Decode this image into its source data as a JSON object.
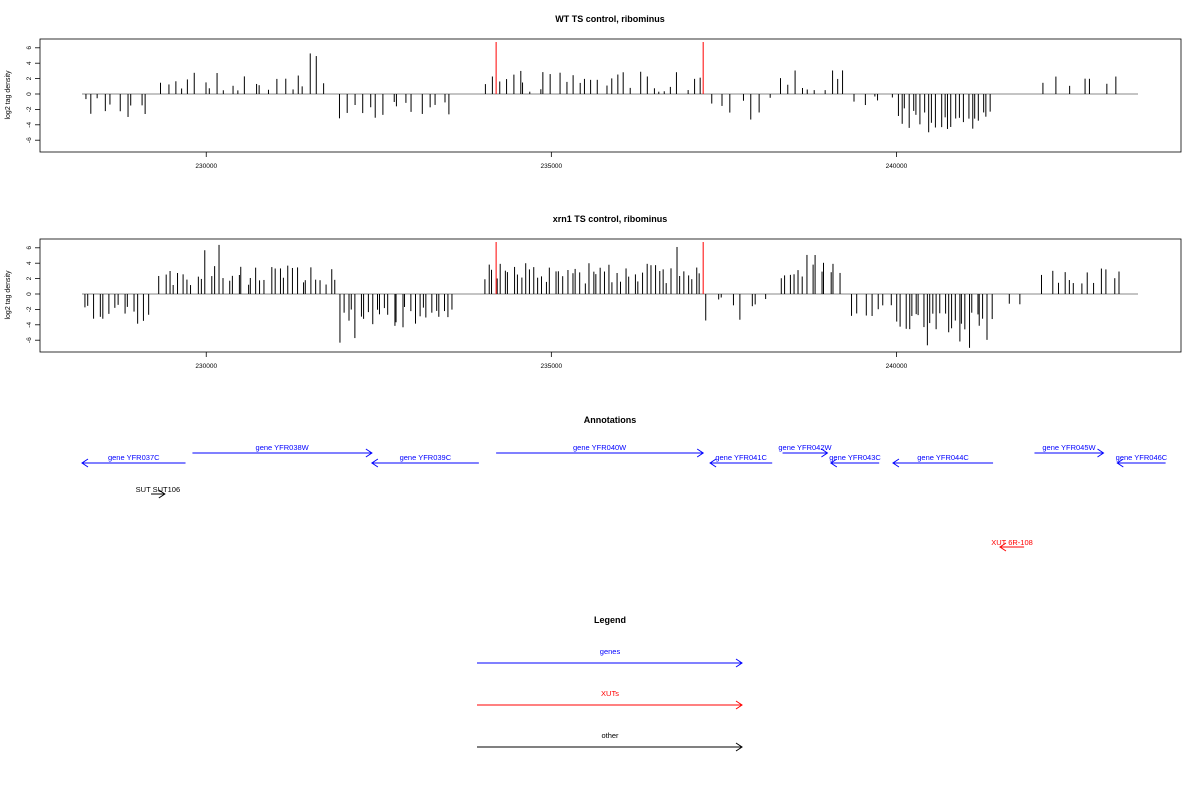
{
  "chart_data": [
    {
      "type": "bar",
      "panel": "wt",
      "title": "WT TS control, ribominus",
      "xlabel": "",
      "ylabel": "log2 tag density",
      "xlim": [
        228200,
        243500
      ],
      "ylim": [
        -7.5,
        7
      ],
      "xticks": [
        230000,
        235000,
        240000
      ],
      "yticks": [
        6,
        4,
        2,
        0,
        -2,
        -4,
        -6
      ],
      "red_markers": [
        234200,
        237200
      ],
      "segments": [
        {
          "x0": 228200,
          "x1": 229200,
          "sign": -1,
          "base": 1.6,
          "amp": 1.6,
          "max": 5.8,
          "density": 14
        },
        {
          "x0": 229300,
          "x1": 231800,
          "sign": 1,
          "base": 1.6,
          "amp": 1.2,
          "max": 5.8,
          "density": 14
        },
        {
          "x0": 231900,
          "x1": 233600,
          "sign": -1,
          "base": 2.0,
          "amp": 1.2,
          "max": 4.6,
          "density": 14
        },
        {
          "x0": 234000,
          "x1": 237200,
          "sign": 1,
          "base": 1.6,
          "amp": 1.4,
          "max": 4.4,
          "density": 15
        },
        {
          "x0": 237300,
          "x1": 238200,
          "sign": -1,
          "base": 1.5,
          "amp": 1.1,
          "max": 3.6,
          "density": 12
        },
        {
          "x0": 238300,
          "x1": 239300,
          "sign": 1,
          "base": 1.8,
          "amp": 1.3,
          "max": 4.6,
          "density": 14
        },
        {
          "x0": 239300,
          "x1": 240000,
          "sign": -1,
          "base": 1.2,
          "amp": 1.0,
          "max": 3.0,
          "density": 10
        },
        {
          "x0": 240000,
          "x1": 241400,
          "sign": -1,
          "base": 3.2,
          "amp": 1.4,
          "max": 6.2,
          "density": 26
        },
        {
          "x0": 242100,
          "x1": 243300,
          "sign": 1,
          "base": 1.5,
          "amp": 0.8,
          "max": 2.6,
          "density": 8
        }
      ]
    },
    {
      "type": "bar",
      "panel": "xrn1",
      "title": "xrn1 TS control, ribominus",
      "xlabel": "",
      "ylabel": "log2 tag density",
      "xlim": [
        228200,
        243500
      ],
      "ylim": [
        -7.5,
        7
      ],
      "xticks": [
        230000,
        235000,
        240000
      ],
      "yticks": [
        6,
        4,
        2,
        0,
        -2,
        -4,
        -6
      ],
      "red_markers": [
        234200,
        237200
      ],
      "segments": [
        {
          "x0": 228200,
          "x1": 229200,
          "sign": -1,
          "base": 2.6,
          "amp": 1.4,
          "max": 6.2,
          "density": 20
        },
        {
          "x0": 229300,
          "x1": 231900,
          "sign": 1,
          "base": 2.4,
          "amp": 1.3,
          "max": 7.0,
          "density": 22
        },
        {
          "x0": 231900,
          "x1": 233600,
          "sign": -1,
          "base": 3.0,
          "amp": 1.5,
          "max": 6.8,
          "density": 24
        },
        {
          "x0": 234000,
          "x1": 237200,
          "sign": 1,
          "base": 2.6,
          "amp": 1.4,
          "max": 6.6,
          "density": 24
        },
        {
          "x0": 237200,
          "x1": 238200,
          "sign": -1,
          "base": 1.4,
          "amp": 1.0,
          "max": 3.8,
          "density": 12
        },
        {
          "x0": 238300,
          "x1": 239200,
          "sign": 1,
          "base": 3.0,
          "amp": 1.4,
          "max": 6.2,
          "density": 22
        },
        {
          "x0": 239300,
          "x1": 240000,
          "sign": -1,
          "base": 2.0,
          "amp": 1.0,
          "max": 4.0,
          "density": 14
        },
        {
          "x0": 240000,
          "x1": 241400,
          "sign": -1,
          "base": 3.8,
          "amp": 1.4,
          "max": 7.0,
          "density": 28
        },
        {
          "x0": 241600,
          "x1": 241900,
          "sign": -1,
          "base": 1.0,
          "amp": 0.6,
          "max": 2.0,
          "density": 6
        },
        {
          "x0": 242100,
          "x1": 243300,
          "sign": 1,
          "base": 2.2,
          "amp": 1.2,
          "max": 5.2,
          "density": 16
        }
      ]
    }
  ],
  "annotations": {
    "title": "Annotations",
    "features": [
      {
        "label": "gene YFR037C",
        "x0": 228200,
        "x1": 229700,
        "dir": -1,
        "row": 1,
        "color": "#0000ff"
      },
      {
        "label": "gene YFR038W",
        "x0": 229800,
        "x1": 232400,
        "dir": 1,
        "row": 0,
        "color": "#0000ff"
      },
      {
        "label": "gene YFR039C",
        "x0": 232400,
        "x1": 233950,
        "dir": -1,
        "row": 1,
        "color": "#0000ff"
      },
      {
        "label": "gene YFR040W",
        "x0": 234200,
        "x1": 237200,
        "dir": 1,
        "row": 0,
        "color": "#0000ff"
      },
      {
        "label": "gene YFR041C",
        "x0": 237300,
        "x1": 238200,
        "dir": -1,
        "row": 1,
        "color": "#0000ff"
      },
      {
        "label": "gene YFR042W",
        "x0": 238350,
        "x1": 239000,
        "dir": 1,
        "row": 0,
        "color": "#0000ff"
      },
      {
        "label": "gene YFR043C",
        "x0": 239050,
        "x1": 239750,
        "dir": -1,
        "row": 1,
        "color": "#0000ff"
      },
      {
        "label": "gene YFR044C",
        "x0": 239950,
        "x1": 241400,
        "dir": -1,
        "row": 1,
        "color": "#0000ff"
      },
      {
        "label": "gene YFR045W",
        "x0": 242000,
        "x1": 243000,
        "dir": 1,
        "row": 0,
        "color": "#0000ff"
      },
      {
        "label": "gene YFR046C",
        "x0": 243200,
        "x1": 243900,
        "dir": -1,
        "row": 1,
        "color": "#0000ff"
      },
      {
        "label": "SUT SUT106",
        "x0": 229200,
        "x1": 229400,
        "dir": 1,
        "row": 2,
        "color": "#000000"
      },
      {
        "label": "XUT 6R-108",
        "x0": 241500,
        "x1": 241850,
        "dir": -1,
        "row": 3,
        "color": "#ff0000"
      }
    ]
  },
  "legend": {
    "title": "Legend",
    "items": [
      {
        "label": "genes",
        "color": "#0000ff"
      },
      {
        "label": "XUTs",
        "color": "#ff0000"
      },
      {
        "label": "other",
        "color": "#000000"
      }
    ]
  }
}
